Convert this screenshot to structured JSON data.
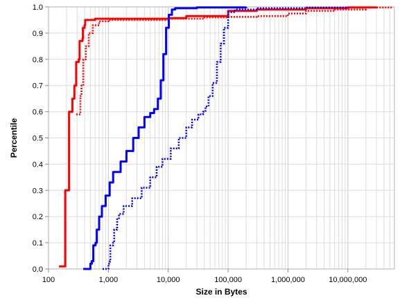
{
  "chart_data": {
    "type": "line",
    "xlabel": "Size in Bytes",
    "ylabel": "Percentile",
    "x_scale": "log",
    "xlim": [
      100,
      60000000
    ],
    "ylim": [
      0,
      1
    ],
    "grid": true,
    "legend": "none",
    "x_tick_labels": [
      {
        "value": 100,
        "label": "100"
      },
      {
        "value": 1000,
        "label": "1,000"
      },
      {
        "value": 10000,
        "label": "10,000"
      },
      {
        "value": 100000,
        "label": "100,000"
      },
      {
        "value": 1000000,
        "label": "1,000,000"
      },
      {
        "value": 10000000,
        "label": "10,000,000"
      }
    ],
    "y_tick_labels": [
      {
        "value": 0.0,
        "label": "0.0"
      },
      {
        "value": 0.1,
        "label": "0.1"
      },
      {
        "value": 0.2,
        "label": "0.2"
      },
      {
        "value": 0.3,
        "label": "0.3"
      },
      {
        "value": 0.4,
        "label": "0.4"
      },
      {
        "value": 0.5,
        "label": "0.5"
      },
      {
        "value": 0.6,
        "label": "0.6"
      },
      {
        "value": 0.7,
        "label": "0.7"
      },
      {
        "value": 0.8,
        "label": "0.8"
      },
      {
        "value": 0.9,
        "label": "0.9"
      },
      {
        "value": 1.0,
        "label": "1.0"
      }
    ],
    "series": [
      {
        "color": "#ff0000",
        "style": "solid",
        "points": [
          [
            150,
            0.01
          ],
          [
            185,
            0.01
          ],
          [
            190,
            0.3
          ],
          [
            215,
            0.3
          ],
          [
            220,
            0.6
          ],
          [
            250,
            0.65
          ],
          [
            270,
            0.7
          ],
          [
            290,
            0.79
          ],
          [
            320,
            0.8
          ],
          [
            330,
            0.87
          ],
          [
            370,
            0.88
          ],
          [
            375,
            0.92
          ],
          [
            400,
            0.93
          ],
          [
            410,
            0.95
          ],
          [
            600,
            0.955
          ],
          [
            2000,
            0.955
          ],
          [
            10000,
            0.957
          ],
          [
            20000,
            0.965
          ],
          [
            100000,
            0.985
          ],
          [
            300000,
            0.99
          ],
          [
            2000000,
            0.995
          ],
          [
            10000000,
            0.998
          ],
          [
            30000000,
            1.0
          ]
        ]
      },
      {
        "color": "#ff0000",
        "style": "dotted",
        "points": [
          [
            290,
            0.59
          ],
          [
            330,
            0.59
          ],
          [
            340,
            0.66
          ],
          [
            355,
            0.7
          ],
          [
            380,
            0.8
          ],
          [
            420,
            0.85
          ],
          [
            470,
            0.9
          ],
          [
            550,
            0.93
          ],
          [
            700,
            0.945
          ],
          [
            1000,
            0.95
          ],
          [
            10000,
            0.955
          ],
          [
            40000,
            0.96
          ],
          [
            100000,
            0.962
          ],
          [
            300000,
            0.965
          ],
          [
            1000000,
            0.975
          ],
          [
            2000000,
            0.985
          ],
          [
            6000000,
            0.99
          ],
          [
            20000000,
            0.998
          ],
          [
            55000000,
            1.0
          ]
        ]
      },
      {
        "color": "#0000ff",
        "style": "solid",
        "points": [
          [
            380,
            0.0
          ],
          [
            470,
            0.0
          ],
          [
            500,
            0.02
          ],
          [
            530,
            0.03
          ],
          [
            560,
            0.09
          ],
          [
            610,
            0.1
          ],
          [
            640,
            0.15
          ],
          [
            700,
            0.2
          ],
          [
            780,
            0.24
          ],
          [
            900,
            0.28
          ],
          [
            1050,
            0.33
          ],
          [
            1200,
            0.37
          ],
          [
            1600,
            0.41
          ],
          [
            2000,
            0.45
          ],
          [
            2600,
            0.5
          ],
          [
            3200,
            0.54
          ],
          [
            4000,
            0.58
          ],
          [
            5000,
            0.595
          ],
          [
            5800,
            0.61
          ],
          [
            6700,
            0.65
          ],
          [
            7500,
            0.72
          ],
          [
            8300,
            0.82
          ],
          [
            9200,
            0.92
          ],
          [
            10200,
            0.97
          ],
          [
            11500,
            0.99
          ],
          [
            13000,
            0.995
          ],
          [
            30000,
            0.998
          ],
          [
            200000,
            1.0
          ]
        ]
      },
      {
        "color": "#0000ff",
        "style": "dotted",
        "points": [
          [
            800,
            0.0
          ],
          [
            950,
            0.0
          ],
          [
            1000,
            0.02
          ],
          [
            1060,
            0.03
          ],
          [
            1080,
            0.09
          ],
          [
            1200,
            0.1
          ],
          [
            1250,
            0.15
          ],
          [
            1400,
            0.19
          ],
          [
            1500,
            0.21
          ],
          [
            1800,
            0.24
          ],
          [
            2500,
            0.27
          ],
          [
            3600,
            0.31
          ],
          [
            5000,
            0.35
          ],
          [
            6400,
            0.39
          ],
          [
            8000,
            0.42
          ],
          [
            11000,
            0.46
          ],
          [
            15000,
            0.5
          ],
          [
            20000,
            0.54
          ],
          [
            25000,
            0.57
          ],
          [
            32000,
            0.59
          ],
          [
            38000,
            0.6
          ],
          [
            42000,
            0.62
          ],
          [
            47000,
            0.66
          ],
          [
            55000,
            0.71
          ],
          [
            65000,
            0.79
          ],
          [
            75000,
            0.86
          ],
          [
            85000,
            0.92
          ],
          [
            100000,
            0.98
          ],
          [
            130000,
            0.99
          ],
          [
            300000,
            0.995
          ],
          [
            2000000,
            0.998
          ],
          [
            10000000,
            1.0
          ]
        ]
      }
    ]
  }
}
